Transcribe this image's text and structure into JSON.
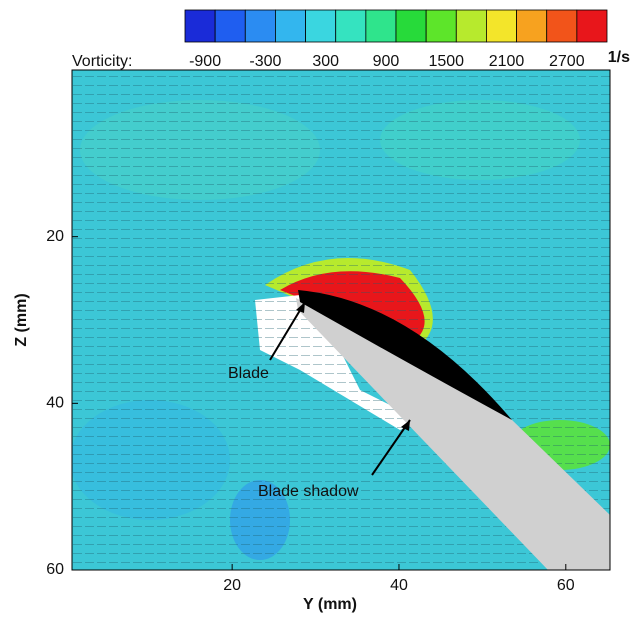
{
  "chart_data": {
    "type": "contour",
    "x_label": "Y (mm)",
    "y_label": "Z (mm)",
    "xlim": [
      0.8,
      65.3
    ],
    "xticks": [
      20,
      40,
      60
    ],
    "ylim": [
      60,
      0
    ],
    "yticks": [
      20,
      40,
      60
    ],
    "colorbar": {
      "label": "Vorticity:",
      "unit": "1/s",
      "lim": [
        -1100,
        3100
      ],
      "ticks": [
        -900,
        -300,
        300,
        900,
        1500,
        2100,
        2700
      ],
      "colors": [
        "#1a2bd8",
        "#1f5ef0",
        "#2b8cf2",
        "#33b6ee",
        "#3ad6e0",
        "#35e3c0",
        "#2fe48c",
        "#27da3a",
        "#5de52a",
        "#b7ea2d",
        "#f3e52a",
        "#f7a21f",
        "#f2541a",
        "#e8161b"
      ]
    },
    "annotations": [
      "Blade",
      "Blade shadow"
    ]
  }
}
